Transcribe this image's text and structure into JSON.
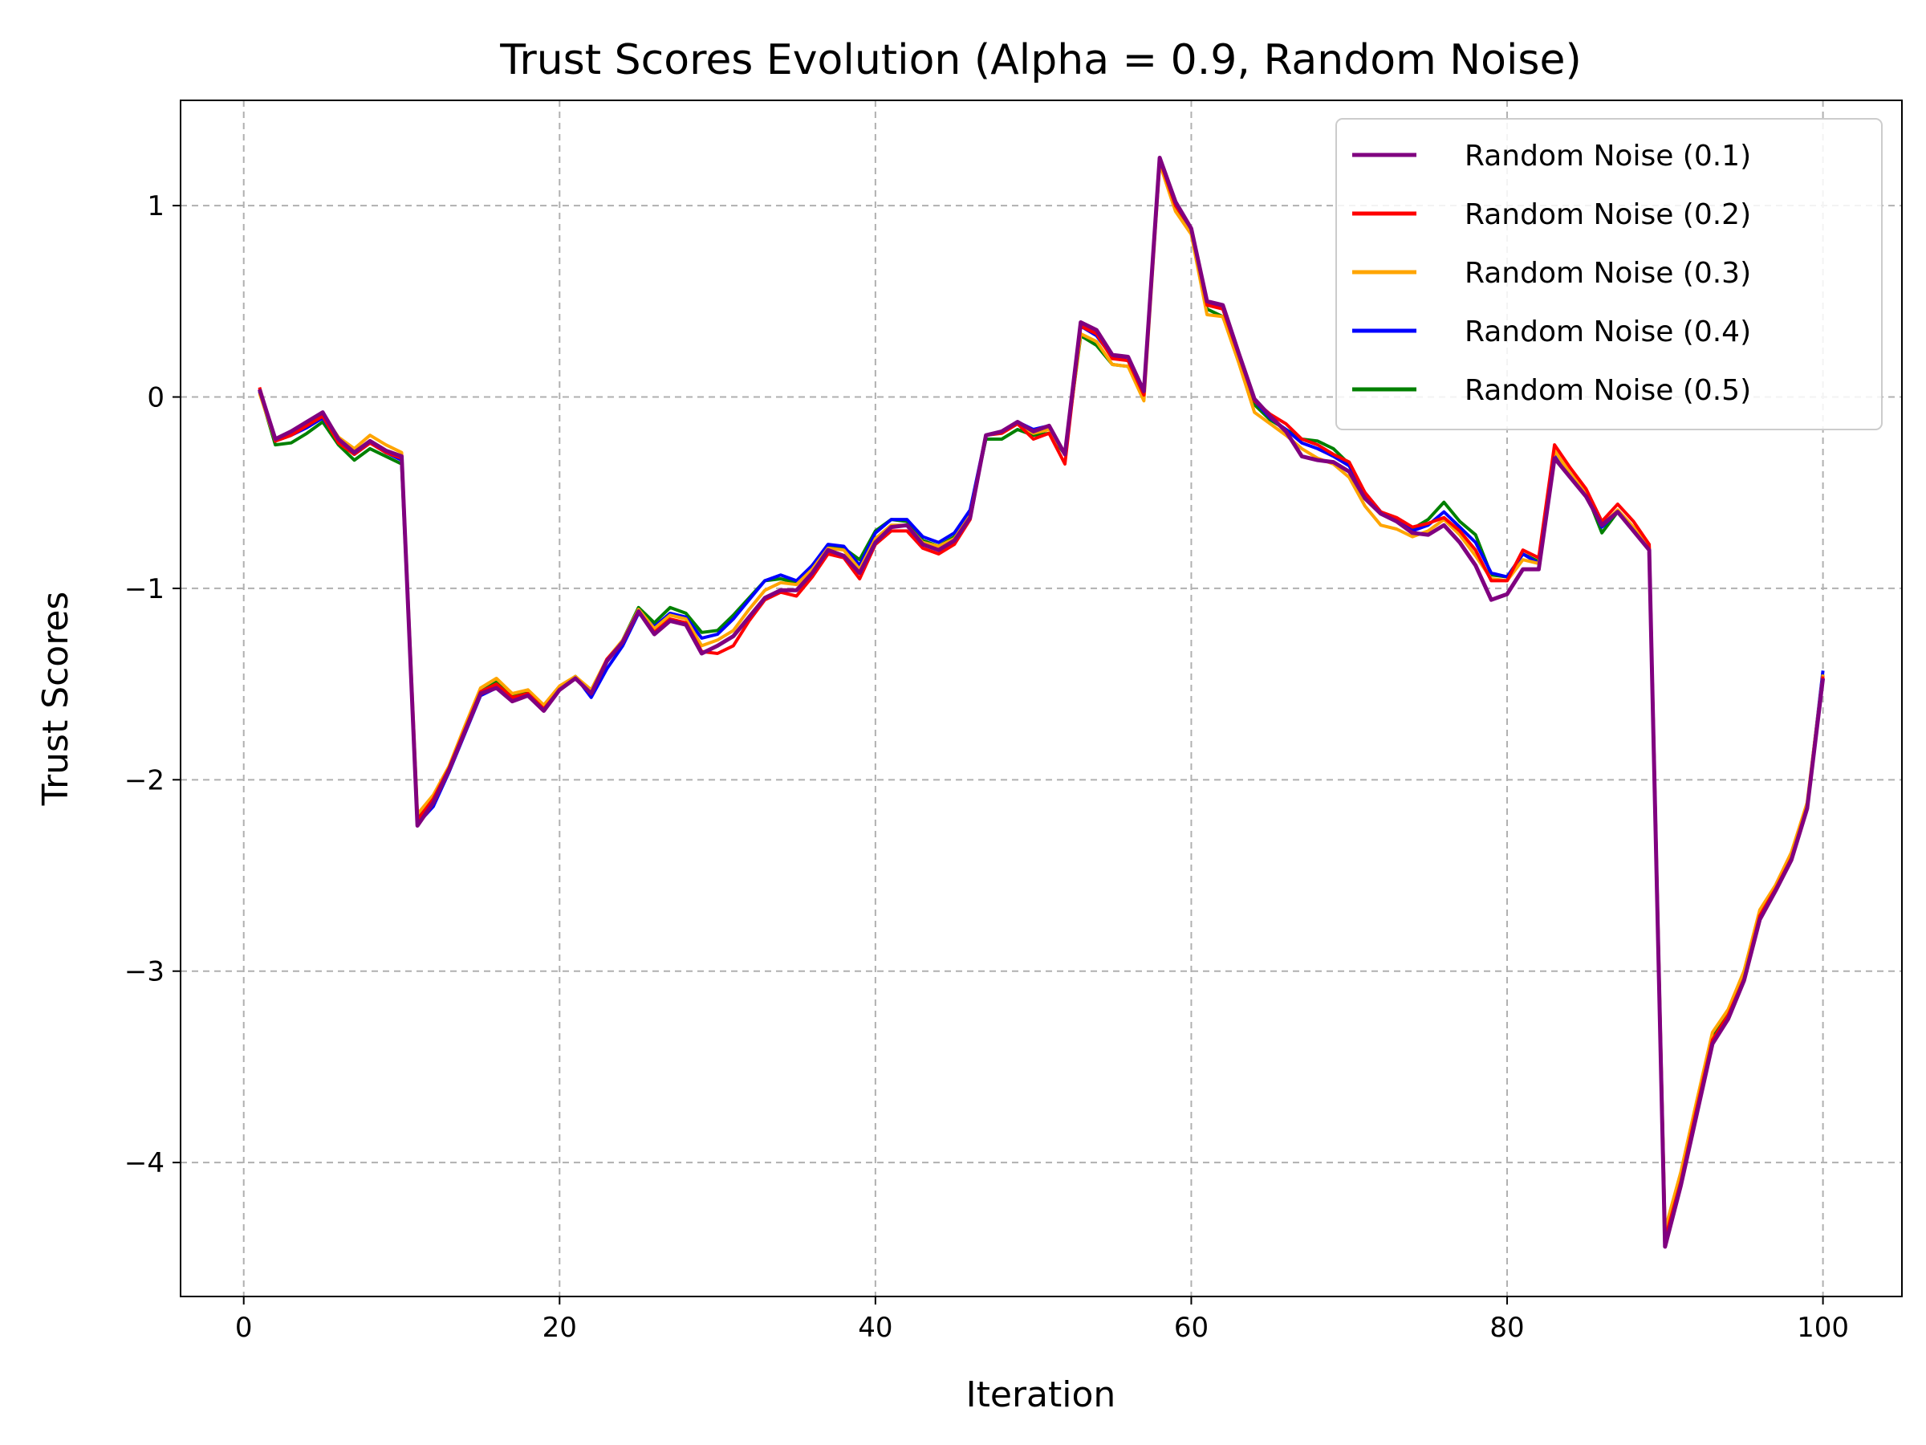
{
  "chart_data": {
    "type": "line",
    "title": "Trust Scores Evolution (Alpha = 0.9, Random Noise)",
    "xlabel": "Iteration",
    "ylabel": "Trust Scores",
    "xlim": [
      -4,
      105
    ],
    "ylim": [
      -4.7,
      1.55
    ],
    "xticks": [
      0,
      20,
      40,
      60,
      80,
      100
    ],
    "xtick_labels": [
      "0",
      "20",
      "40",
      "60",
      "80",
      "100"
    ],
    "yticks": [
      1,
      0,
      -1,
      -2,
      -3,
      -4
    ],
    "ytick_labels": [
      "1",
      "0",
      "−1",
      "−2",
      "−3",
      "−4"
    ],
    "grid": true,
    "legend_position": "top-right",
    "x": [
      1,
      2,
      3,
      4,
      5,
      6,
      7,
      8,
      9,
      10,
      11,
      12,
      13,
      14,
      15,
      16,
      17,
      18,
      19,
      20,
      21,
      22,
      23,
      24,
      25,
      26,
      27,
      28,
      29,
      30,
      31,
      32,
      33,
      34,
      35,
      36,
      37,
      38,
      39,
      40,
      41,
      42,
      43,
      44,
      45,
      46,
      47,
      48,
      49,
      50,
      51,
      52,
      53,
      54,
      55,
      56,
      57,
      58,
      59,
      60,
      61,
      62,
      63,
      64,
      65,
      66,
      67,
      68,
      69,
      70,
      71,
      72,
      73,
      74,
      75,
      76,
      77,
      78,
      79,
      80,
      81,
      82,
      83,
      84,
      85,
      86,
      87,
      88,
      89,
      90,
      91,
      92,
      93,
      94,
      95,
      96,
      97,
      98,
      99,
      100
    ],
    "series": [
      {
        "name": "Random Noise (0.1)",
        "color": "#800080",
        "values": [
          0.04,
          -0.22,
          -0.18,
          -0.13,
          -0.08,
          -0.22,
          -0.29,
          -0.23,
          -0.28,
          -0.31,
          -2.24,
          -2.12,
          -1.95,
          -1.75,
          -1.55,
          -1.52,
          -1.59,
          -1.56,
          -1.64,
          -1.53,
          -1.47,
          -1.55,
          -1.38,
          -1.28,
          -1.12,
          -1.24,
          -1.17,
          -1.19,
          -1.34,
          -1.3,
          -1.25,
          -1.15,
          -1.05,
          -1.01,
          -1.01,
          -0.92,
          -0.8,
          -0.83,
          -0.92,
          -0.76,
          -0.68,
          -0.67,
          -0.77,
          -0.8,
          -0.75,
          -0.63,
          -0.2,
          -0.18,
          -0.13,
          -0.18,
          -0.15,
          -0.3,
          0.39,
          0.35,
          0.22,
          0.21,
          0.03,
          1.25,
          1.02,
          0.88,
          0.5,
          0.48,
          0.23,
          -0.01,
          -0.1,
          -0.18,
          -0.31,
          -0.33,
          -0.34,
          -0.39,
          -0.53,
          -0.61,
          -0.65,
          -0.71,
          -0.72,
          -0.67,
          -0.76,
          -0.88,
          -1.06,
          -1.03,
          -0.9,
          -0.9,
          -0.32,
          -0.42,
          -0.52,
          -0.67,
          -0.6,
          -0.7,
          -0.8,
          -4.44,
          -4.12,
          -3.75,
          -3.38,
          -3.25,
          -3.05,
          -2.73,
          -2.58,
          -2.42,
          -2.15,
          -1.47
        ]
      },
      {
        "name": "Random Noise (0.2)",
        "color": "#ff0000",
        "values": [
          0.05,
          -0.23,
          -0.2,
          -0.15,
          -0.1,
          -0.24,
          -0.3,
          -0.24,
          -0.29,
          -0.32,
          -2.21,
          -2.1,
          -1.94,
          -1.74,
          -1.54,
          -1.5,
          -1.57,
          -1.55,
          -1.63,
          -1.53,
          -1.47,
          -1.55,
          -1.37,
          -1.28,
          -1.12,
          -1.23,
          -1.16,
          -1.18,
          -1.33,
          -1.34,
          -1.3,
          -1.17,
          -1.06,
          -1.02,
          -1.04,
          -0.94,
          -0.82,
          -0.84,
          -0.95,
          -0.77,
          -0.7,
          -0.7,
          -0.79,
          -0.82,
          -0.77,
          -0.64,
          -0.2,
          -0.19,
          -0.14,
          -0.22,
          -0.19,
          -0.35,
          0.37,
          0.33,
          0.2,
          0.19,
          0.01,
          1.24,
          1.0,
          0.88,
          0.48,
          0.46,
          0.22,
          -0.02,
          -0.09,
          -0.14,
          -0.22,
          -0.25,
          -0.3,
          -0.34,
          -0.5,
          -0.6,
          -0.63,
          -0.68,
          -0.66,
          -0.63,
          -0.7,
          -0.8,
          -0.96,
          -0.96,
          -0.8,
          -0.84,
          -0.25,
          -0.37,
          -0.48,
          -0.65,
          -0.56,
          -0.65,
          -0.77,
          -4.4,
          -4.1,
          -3.72,
          -3.36,
          -3.23,
          -3.04,
          -2.71,
          -2.57,
          -2.41,
          -2.14,
          -1.46
        ]
      },
      {
        "name": "Random Noise (0.3)",
        "color": "#ffa500",
        "values": [
          0.02,
          -0.23,
          -0.2,
          -0.14,
          -0.09,
          -0.21,
          -0.27,
          -0.2,
          -0.25,
          -0.29,
          -2.18,
          -2.08,
          -1.93,
          -1.72,
          -1.52,
          -1.47,
          -1.55,
          -1.53,
          -1.61,
          -1.51,
          -1.46,
          -1.53,
          -1.37,
          -1.27,
          -1.11,
          -1.21,
          -1.14,
          -1.16,
          -1.3,
          -1.27,
          -1.22,
          -1.11,
          -1.01,
          -0.97,
          -0.98,
          -0.9,
          -0.79,
          -0.8,
          -0.9,
          -0.74,
          -0.67,
          -0.67,
          -0.76,
          -0.78,
          -0.74,
          -0.62,
          -0.2,
          -0.18,
          -0.14,
          -0.19,
          -0.17,
          -0.3,
          0.33,
          0.29,
          0.17,
          0.16,
          -0.02,
          1.22,
          0.97,
          0.85,
          0.43,
          0.42,
          0.18,
          -0.08,
          -0.14,
          -0.2,
          -0.27,
          -0.32,
          -0.35,
          -0.42,
          -0.57,
          -0.67,
          -0.69,
          -0.73,
          -0.7,
          -0.64,
          -0.72,
          -0.83,
          -0.95,
          -0.96,
          -0.85,
          -0.87,
          -0.28,
          -0.4,
          -0.5,
          -0.67,
          -0.59,
          -0.68,
          -0.78,
          -4.35,
          -4.05,
          -3.68,
          -3.32,
          -3.2,
          -3.0,
          -2.68,
          -2.55,
          -2.38,
          -2.12,
          -1.45
        ]
      },
      {
        "name": "Random Noise (0.4)",
        "color": "#0000ff",
        "values": [
          0.03,
          -0.23,
          -0.2,
          -0.16,
          -0.11,
          -0.23,
          -0.3,
          -0.24,
          -0.29,
          -0.33,
          -2.23,
          -2.14,
          -1.96,
          -1.76,
          -1.56,
          -1.52,
          -1.58,
          -1.55,
          -1.63,
          -1.52,
          -1.46,
          -1.57,
          -1.42,
          -1.3,
          -1.13,
          -1.2,
          -1.13,
          -1.15,
          -1.26,
          -1.24,
          -1.16,
          -1.06,
          -0.96,
          -0.93,
          -0.96,
          -0.88,
          -0.77,
          -0.78,
          -0.88,
          -0.71,
          -0.64,
          -0.64,
          -0.73,
          -0.76,
          -0.71,
          -0.59,
          -0.2,
          -0.18,
          -0.13,
          -0.17,
          -0.15,
          -0.3,
          0.37,
          0.32,
          0.21,
          0.19,
          0.02,
          1.25,
          1.01,
          0.87,
          0.49,
          0.46,
          0.22,
          -0.02,
          -0.11,
          -0.17,
          -0.24,
          -0.27,
          -0.31,
          -0.36,
          -0.5,
          -0.6,
          -0.64,
          -0.7,
          -0.67,
          -0.6,
          -0.68,
          -0.76,
          -0.92,
          -0.94,
          -0.82,
          -0.87,
          -0.29,
          -0.41,
          -0.51,
          -0.68,
          -0.6,
          -0.69,
          -0.8,
          -4.42,
          -4.1,
          -3.73,
          -3.36,
          -3.24,
          -3.04,
          -2.72,
          -2.57,
          -2.41,
          -2.14,
          -1.43
        ]
      },
      {
        "name": "Random Noise (0.5)",
        "color": "#008000",
        "values": [
          0.03,
          -0.25,
          -0.24,
          -0.19,
          -0.13,
          -0.25,
          -0.33,
          -0.27,
          -0.31,
          -0.35,
          -2.2,
          -2.11,
          -1.95,
          -1.74,
          -1.54,
          -1.49,
          -1.56,
          -1.54,
          -1.62,
          -1.52,
          -1.46,
          -1.54,
          -1.38,
          -1.27,
          -1.1,
          -1.18,
          -1.1,
          -1.13,
          -1.23,
          -1.22,
          -1.14,
          -1.05,
          -0.96,
          -0.95,
          -0.97,
          -0.88,
          -0.78,
          -0.79,
          -0.85,
          -0.7,
          -0.64,
          -0.65,
          -0.75,
          -0.78,
          -0.73,
          -0.6,
          -0.22,
          -0.22,
          -0.17,
          -0.2,
          -0.19,
          -0.3,
          0.32,
          0.27,
          0.17,
          0.16,
          0.04,
          1.23,
          0.99,
          0.87,
          0.46,
          0.42,
          0.2,
          -0.04,
          -0.12,
          -0.17,
          -0.22,
          -0.23,
          -0.27,
          -0.35,
          -0.51,
          -0.61,
          -0.64,
          -0.69,
          -0.64,
          -0.55,
          -0.65,
          -0.72,
          -0.93,
          -0.94,
          -0.82,
          -0.86,
          -0.29,
          -0.4,
          -0.5,
          -0.71,
          -0.6,
          -0.69,
          -0.79,
          -4.37,
          -4.07,
          -3.7,
          -3.33,
          -3.21,
          -3.01,
          -2.7,
          -2.56,
          -2.4,
          -2.13,
          -1.45
        ]
      }
    ]
  }
}
